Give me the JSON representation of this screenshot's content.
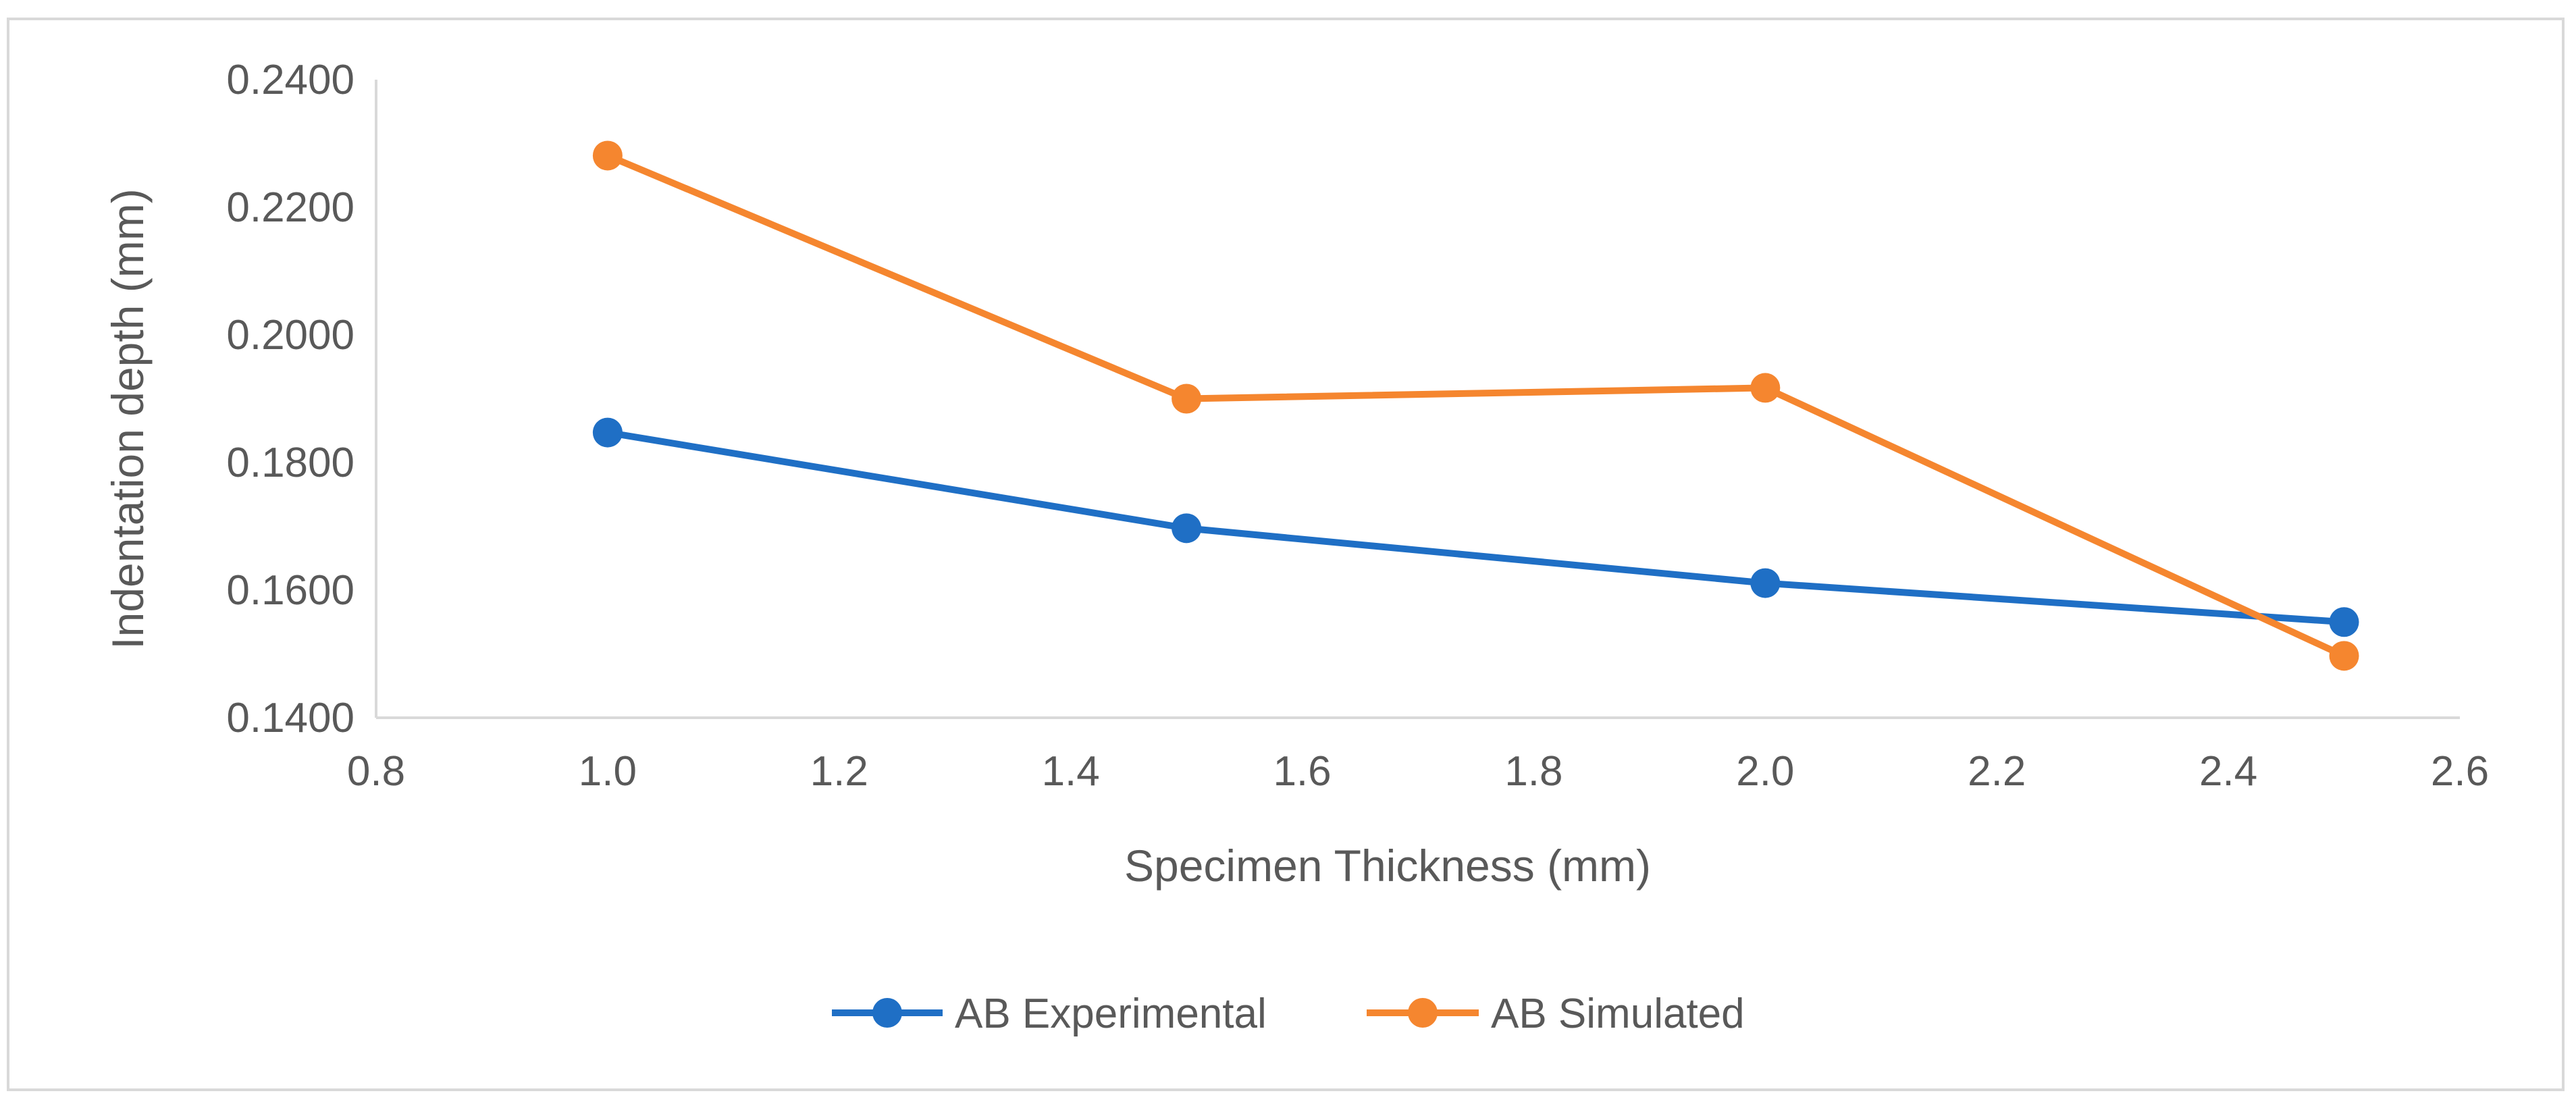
{
  "chart_data": {
    "type": "line",
    "title": "",
    "xlabel": "Specimen Thickness (mm)",
    "ylabel": "Indentation depth (mm)",
    "xlim": [
      0.8,
      2.6
    ],
    "ylim": [
      0.14,
      0.24
    ],
    "x_ticks": [
      "0.8",
      "1.0",
      "1.2",
      "1.4",
      "1.6",
      "1.8",
      "2.0",
      "2.2",
      "2.4",
      "2.6"
    ],
    "y_ticks": [
      "0.1400",
      "0.1600",
      "0.1800",
      "0.2000",
      "0.2200",
      "0.2400"
    ],
    "grid": false,
    "legend_position": "bottom",
    "series": [
      {
        "name": "AB Experimental",
        "color": "#1f6fc5",
        "points": [
          {
            "x": 1.0,
            "y": 0.1847
          },
          {
            "x": 1.5,
            "y": 0.1697
          },
          {
            "x": 2.0,
            "y": 0.1611
          },
          {
            "x": 2.5,
            "y": 0.155
          }
        ]
      },
      {
        "name": "AB Simulated",
        "color": "#f5862f",
        "points": [
          {
            "x": 1.0,
            "y": 0.2281
          },
          {
            "x": 1.5,
            "y": 0.19
          },
          {
            "x": 2.0,
            "y": 0.1917
          },
          {
            "x": 2.5,
            "y": 0.1497
          }
        ]
      }
    ]
  }
}
